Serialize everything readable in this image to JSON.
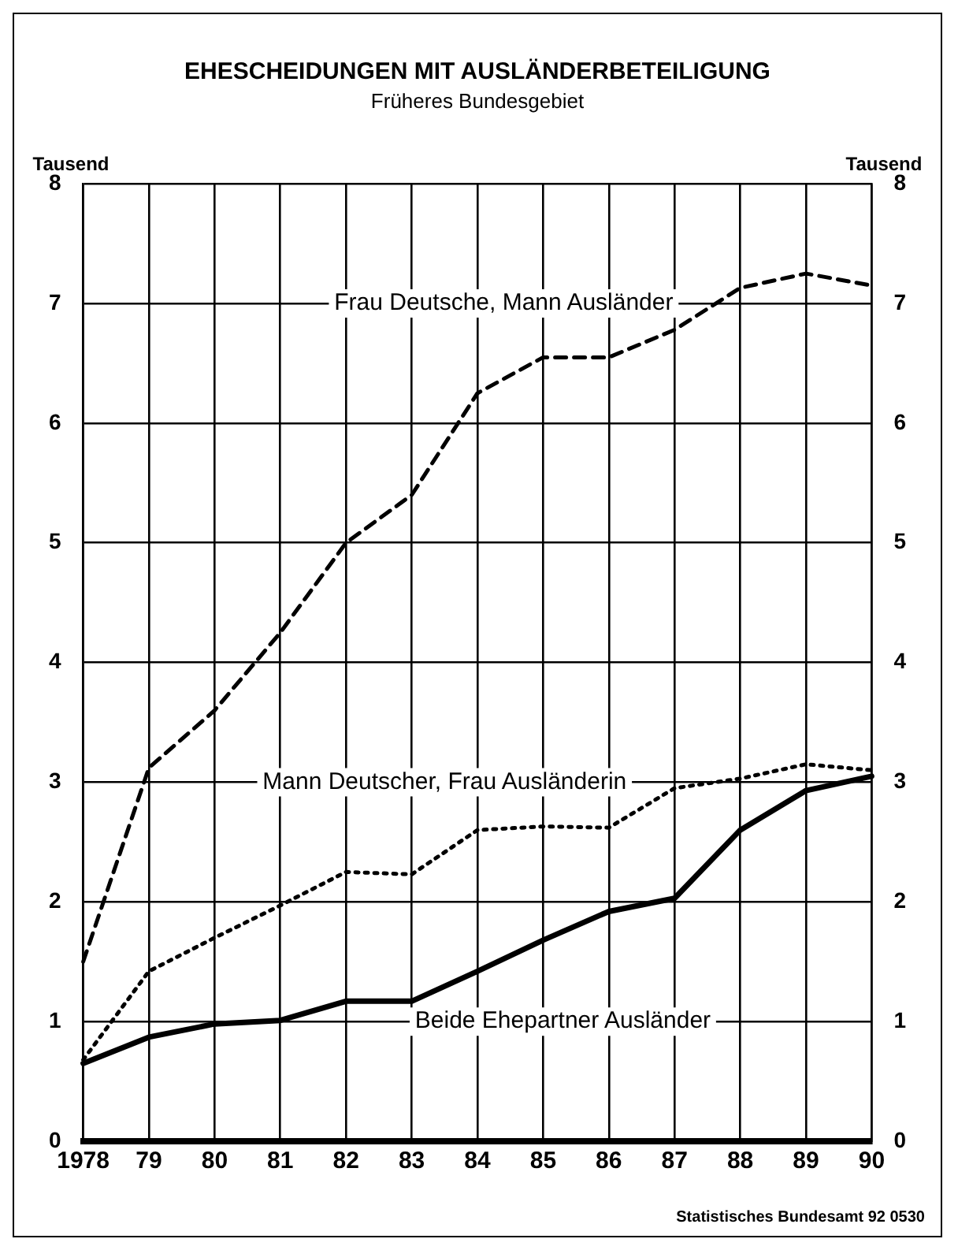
{
  "chart_data": {
    "type": "line",
    "title": "EHESCHEIDUNGEN MIT AUSLÄNDERBETEILIGUNG",
    "subtitle": "Früheres Bundesgebiet",
    "ylabel": "Tausend",
    "y2label": "Tausend",
    "categories": [
      "1978",
      "79",
      "80",
      "81",
      "82",
      "83",
      "84",
      "85",
      "86",
      "87",
      "88",
      "89",
      "90"
    ],
    "series": [
      {
        "name": "Frau Deutsche, Mann Ausländer",
        "color": "#000000",
        "line_style": "dashed",
        "values": [
          1.5,
          3.12,
          3.6,
          4.25,
          5.0,
          5.4,
          6.25,
          6.55,
          6.55,
          6.78,
          7.13,
          7.25,
          7.15
        ]
      },
      {
        "name": "Mann Deutscher, Frau Ausländerin",
        "color": "#000000",
        "line_style": "dotted",
        "values": [
          0.68,
          1.42,
          1.7,
          1.97,
          2.25,
          2.23,
          2.6,
          2.63,
          2.62,
          2.95,
          3.03,
          3.15,
          3.1
        ]
      },
      {
        "name": "Beide Ehepartner Ausländer",
        "color": "#000000",
        "line_style": "solid",
        "values": [
          0.65,
          0.87,
          0.98,
          1.01,
          1.17,
          1.17,
          1.42,
          1.68,
          1.92,
          2.03,
          2.6,
          2.93,
          3.05
        ]
      }
    ],
    "ylim": [
      0,
      8
    ],
    "yticks": [
      0,
      1,
      2,
      3,
      4,
      5,
      6,
      7,
      8
    ],
    "y2lim": [
      0,
      8
    ],
    "y2ticks": [
      0,
      1,
      2,
      3,
      4,
      5,
      6,
      7,
      8
    ],
    "grid": true,
    "legend": false,
    "marker": "none",
    "annotations": [
      "Statistisches Bundesamt 92 0530"
    ]
  }
}
